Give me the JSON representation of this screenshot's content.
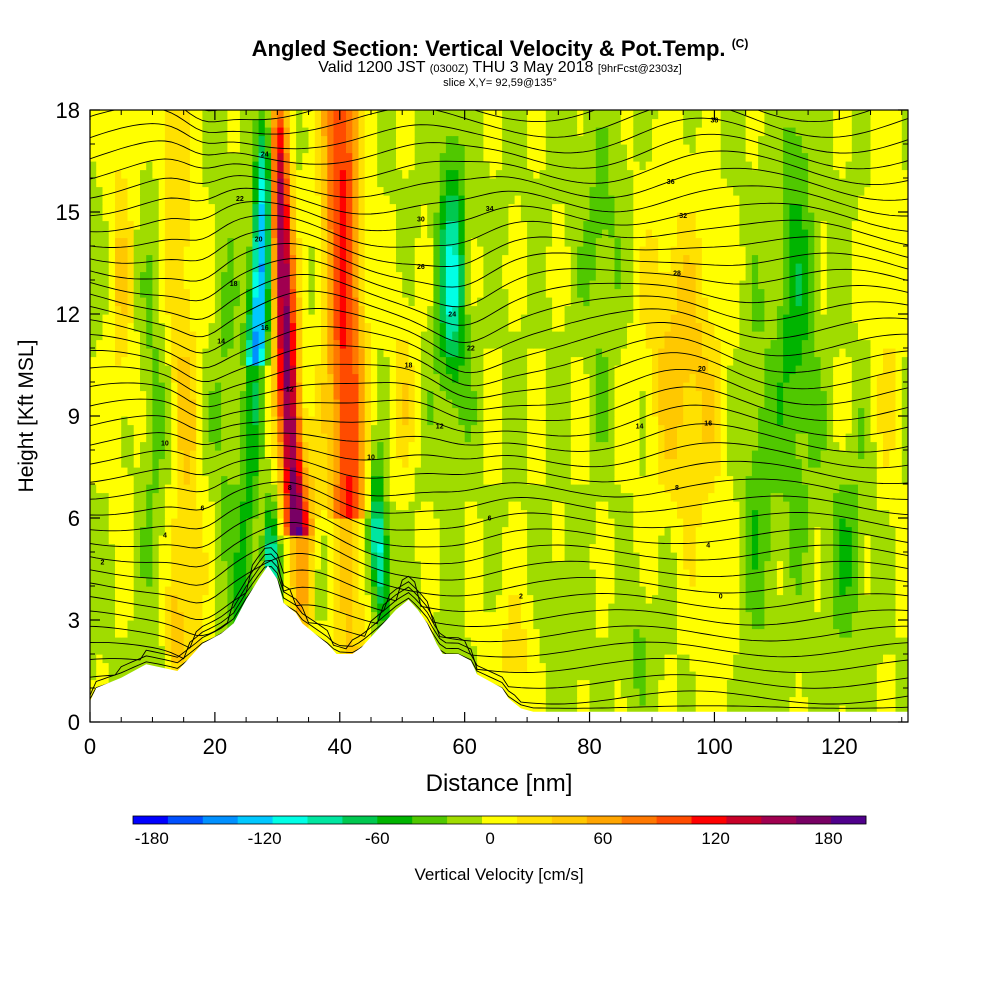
{
  "header": {
    "title": "Angled Section: Vertical Velocity & Pot.Temp.",
    "title_unit": "(C)",
    "valid_prefix": "Valid 1200 JST",
    "valid_utc": "(0300Z)",
    "valid_date": "THU 3 May 2018",
    "forecast": "[9hrFcst@2303z]",
    "slice": "slice X,Y= 92,59@135°"
  },
  "chart_data": {
    "type": "heatmap",
    "title": "Angled Section: Vertical Velocity & Pot.Temp.",
    "xlabel": "Distance [nm]",
    "ylabel": "Height [Kft MSL]",
    "xlim": [
      0,
      131
    ],
    "ylim": [
      0,
      18
    ],
    "xticks": [
      "0",
      "20",
      "40",
      "60",
      "80",
      "100",
      "120"
    ],
    "yticks": [
      "0",
      "3",
      "6",
      "9",
      "12",
      "15",
      "18"
    ],
    "colorbar": {
      "label": "Vertical Velocity [cm/s]",
      "ticks": [
        "-180",
        "-120",
        "-60",
        "0",
        "60",
        "120",
        "180"
      ],
      "min": -190,
      "max": 200,
      "step": 20,
      "colors": [
        "#0000ff",
        "#0050ff",
        "#0090ff",
        "#00c8ff",
        "#00ffe6",
        "#00e6a0",
        "#00c850",
        "#00b400",
        "#50c800",
        "#a0dc00",
        "#ffff00",
        "#ffe100",
        "#ffc800",
        "#ffa500",
        "#ff7800",
        "#ff4b00",
        "#ff0000",
        "#c80028",
        "#a00050",
        "#780064",
        "#50008c"
      ]
    },
    "features": [
      {
        "x": 27,
        "value": -140
      },
      {
        "x": 31,
        "value": 190
      },
      {
        "x": 41,
        "value": 130
      },
      {
        "x": 46,
        "value": -110
      },
      {
        "x": 58,
        "value": -100
      },
      {
        "x": 95,
        "value": 60
      },
      {
        "x": 113,
        "value": -60
      }
    ],
    "contour_labels": [
      {
        "x": 28,
        "y": 16.7,
        "text": "24"
      },
      {
        "x": 24,
        "y": 15.4,
        "text": "22"
      },
      {
        "x": 27,
        "y": 14.2,
        "text": "20"
      },
      {
        "x": 23,
        "y": 12.9,
        "text": "18"
      },
      {
        "x": 28,
        "y": 11.6,
        "text": "16"
      },
      {
        "x": 21,
        "y": 11.2,
        "text": "14"
      },
      {
        "x": 32,
        "y": 9.8,
        "text": "12"
      },
      {
        "x": 12,
        "y": 8.2,
        "text": "10"
      },
      {
        "x": 32,
        "y": 6.9,
        "text": "8"
      },
      {
        "x": 18,
        "y": 6.3,
        "text": "6"
      },
      {
        "x": 12,
        "y": 5.5,
        "text": "4"
      },
      {
        "x": 2,
        "y": 4.7,
        "text": "2"
      },
      {
        "x": 100,
        "y": 17.7,
        "text": "38"
      },
      {
        "x": 93,
        "y": 15.9,
        "text": "36"
      },
      {
        "x": 64,
        "y": 15.1,
        "text": "34"
      },
      {
        "x": 95,
        "y": 14.9,
        "text": "32"
      },
      {
        "x": 53,
        "y": 14.8,
        "text": "30"
      },
      {
        "x": 94,
        "y": 13.2,
        "text": "28"
      },
      {
        "x": 53,
        "y": 13.4,
        "text": "26"
      },
      {
        "x": 58,
        "y": 12.0,
        "text": "24"
      },
      {
        "x": 61,
        "y": 11.0,
        "text": "22"
      },
      {
        "x": 98,
        "y": 10.4,
        "text": "20"
      },
      {
        "x": 51,
        "y": 10.5,
        "text": "18"
      },
      {
        "x": 99,
        "y": 8.8,
        "text": "16"
      },
      {
        "x": 88,
        "y": 8.7,
        "text": "14"
      },
      {
        "x": 56,
        "y": 8.7,
        "text": "12"
      },
      {
        "x": 45,
        "y": 7.8,
        "text": "10"
      },
      {
        "x": 94,
        "y": 6.9,
        "text": "8"
      },
      {
        "x": 64,
        "y": 6.0,
        "text": "6"
      },
      {
        "x": 99,
        "y": 5.2,
        "text": "4"
      },
      {
        "x": 69,
        "y": 3.7,
        "text": "2"
      },
      {
        "x": 101,
        "y": 3.7,
        "text": "0"
      }
    ],
    "terrain": [
      [
        0,
        0.6
      ],
      [
        1,
        1.0
      ],
      [
        5,
        1.3
      ],
      [
        9,
        1.7
      ],
      [
        14,
        1.5
      ],
      [
        16,
        1.9
      ],
      [
        18,
        2.3
      ],
      [
        21,
        2.6
      ],
      [
        23,
        2.9
      ],
      [
        25,
        3.6
      ],
      [
        27,
        4.2
      ],
      [
        28.5,
        4.6
      ],
      [
        30,
        4.2
      ],
      [
        31,
        3.5
      ],
      [
        33,
        3.2
      ],
      [
        34,
        2.9
      ],
      [
        36,
        2.6
      ],
      [
        38,
        2.3
      ],
      [
        39.5,
        2.0
      ],
      [
        42,
        2.0
      ],
      [
        43.5,
        2.2
      ],
      [
        45.5,
        2.6
      ],
      [
        47,
        2.9
      ],
      [
        49,
        3.3
      ],
      [
        51,
        3.6
      ],
      [
        52.5,
        3.3
      ],
      [
        54,
        2.9
      ],
      [
        55.5,
        2.3
      ],
      [
        56.5,
        2.0
      ],
      [
        59,
        2.0
      ],
      [
        61,
        1.8
      ],
      [
        62,
        1.4
      ],
      [
        64,
        1.2
      ],
      [
        66,
        1.0
      ],
      [
        67,
        0.7
      ],
      [
        69,
        0.4
      ],
      [
        71,
        0.3
      ],
      [
        131,
        0.3
      ]
    ]
  }
}
